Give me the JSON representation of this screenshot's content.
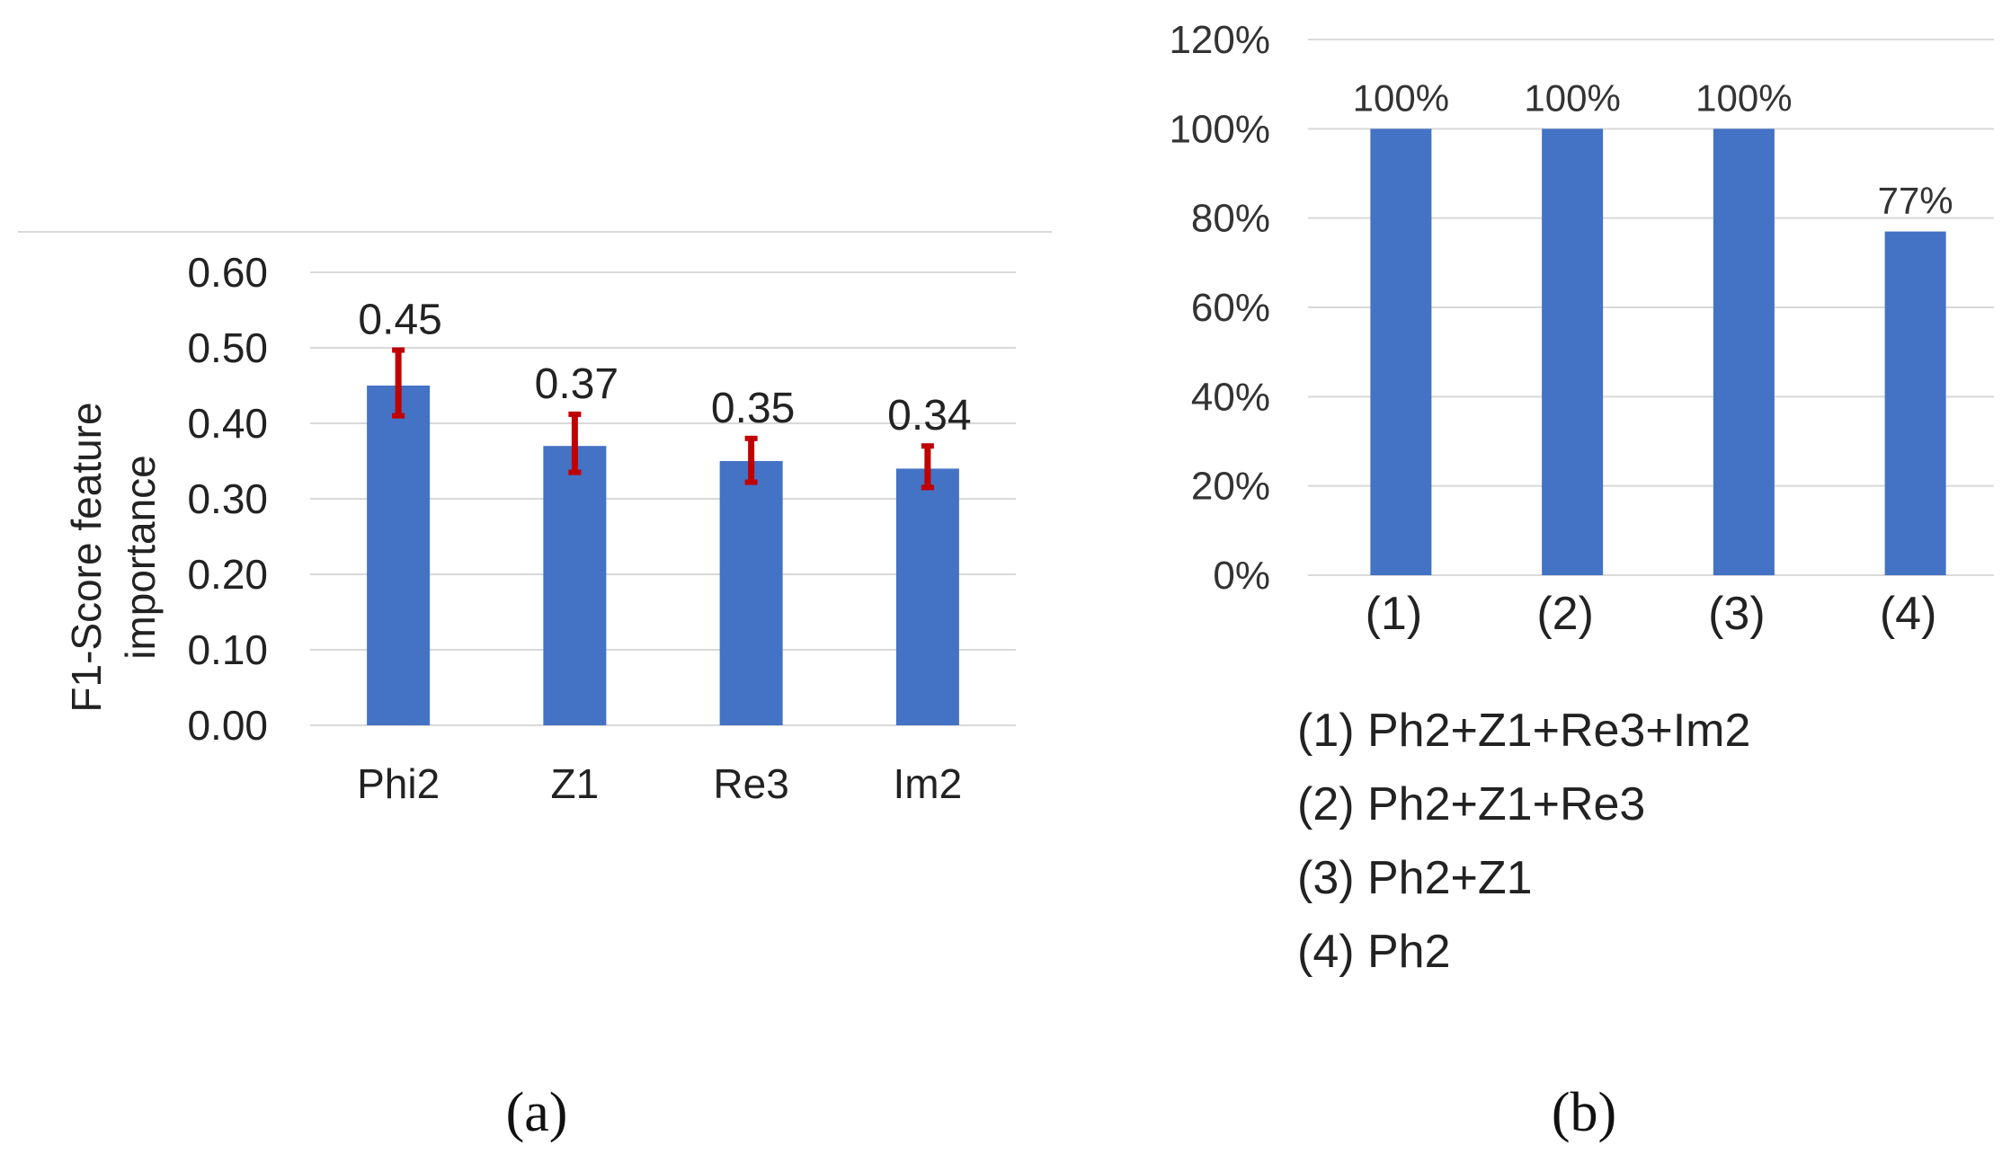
{
  "chart_data": [
    {
      "type": "bar",
      "title": "",
      "caption": "(a)",
      "xlabel": "",
      "ylabel": "F1-Score feature importance",
      "categories": [
        "Phi2",
        "Z1",
        "Re3",
        "Im2"
      ],
      "values": [
        0.45,
        0.37,
        0.35,
        0.34
      ],
      "error_low": [
        0.41,
        0.335,
        0.322,
        0.315
      ],
      "error_high": [
        0.497,
        0.412,
        0.38,
        0.37
      ],
      "data_labels": [
        "0.45",
        "0.37",
        "0.35",
        "0.34"
      ],
      "ylim": [
        0,
        0.6
      ],
      "yticks": [
        0.0,
        0.1,
        0.2,
        0.3,
        0.4,
        0.5,
        0.6
      ],
      "ytick_labels": [
        "0.00",
        "0.10",
        "0.20",
        "0.30",
        "0.40",
        "0.50",
        "0.60"
      ],
      "grid": true,
      "colors": {
        "bar": "#4472C4",
        "error": "#C00000",
        "grid": "#D9D9D9"
      }
    },
    {
      "type": "bar",
      "title": "",
      "caption": "(b)",
      "xlabel": "",
      "ylabel": "",
      "categories": [
        "(1)",
        "(2)",
        "(3)",
        "(4)"
      ],
      "values": [
        100,
        100,
        100,
        77
      ],
      "data_labels": [
        "100%",
        "100%",
        "100%",
        "77%"
      ],
      "ylim": [
        0,
        120
      ],
      "yticks": [
        0,
        20,
        40,
        60,
        80,
        100,
        120
      ],
      "ytick_labels": [
        "0%",
        "20%",
        "40%",
        "60%",
        "80%",
        "100%",
        "120%"
      ],
      "grid": true,
      "legend": [
        "(1) Ph2+Z1+Re3+Im2",
        "(2) Ph2+Z1+Re3",
        "(3) Ph2+Z1",
        "(4) Ph2"
      ],
      "colors": {
        "bar": "#4472C4",
        "grid": "#D9D9D9"
      }
    }
  ]
}
